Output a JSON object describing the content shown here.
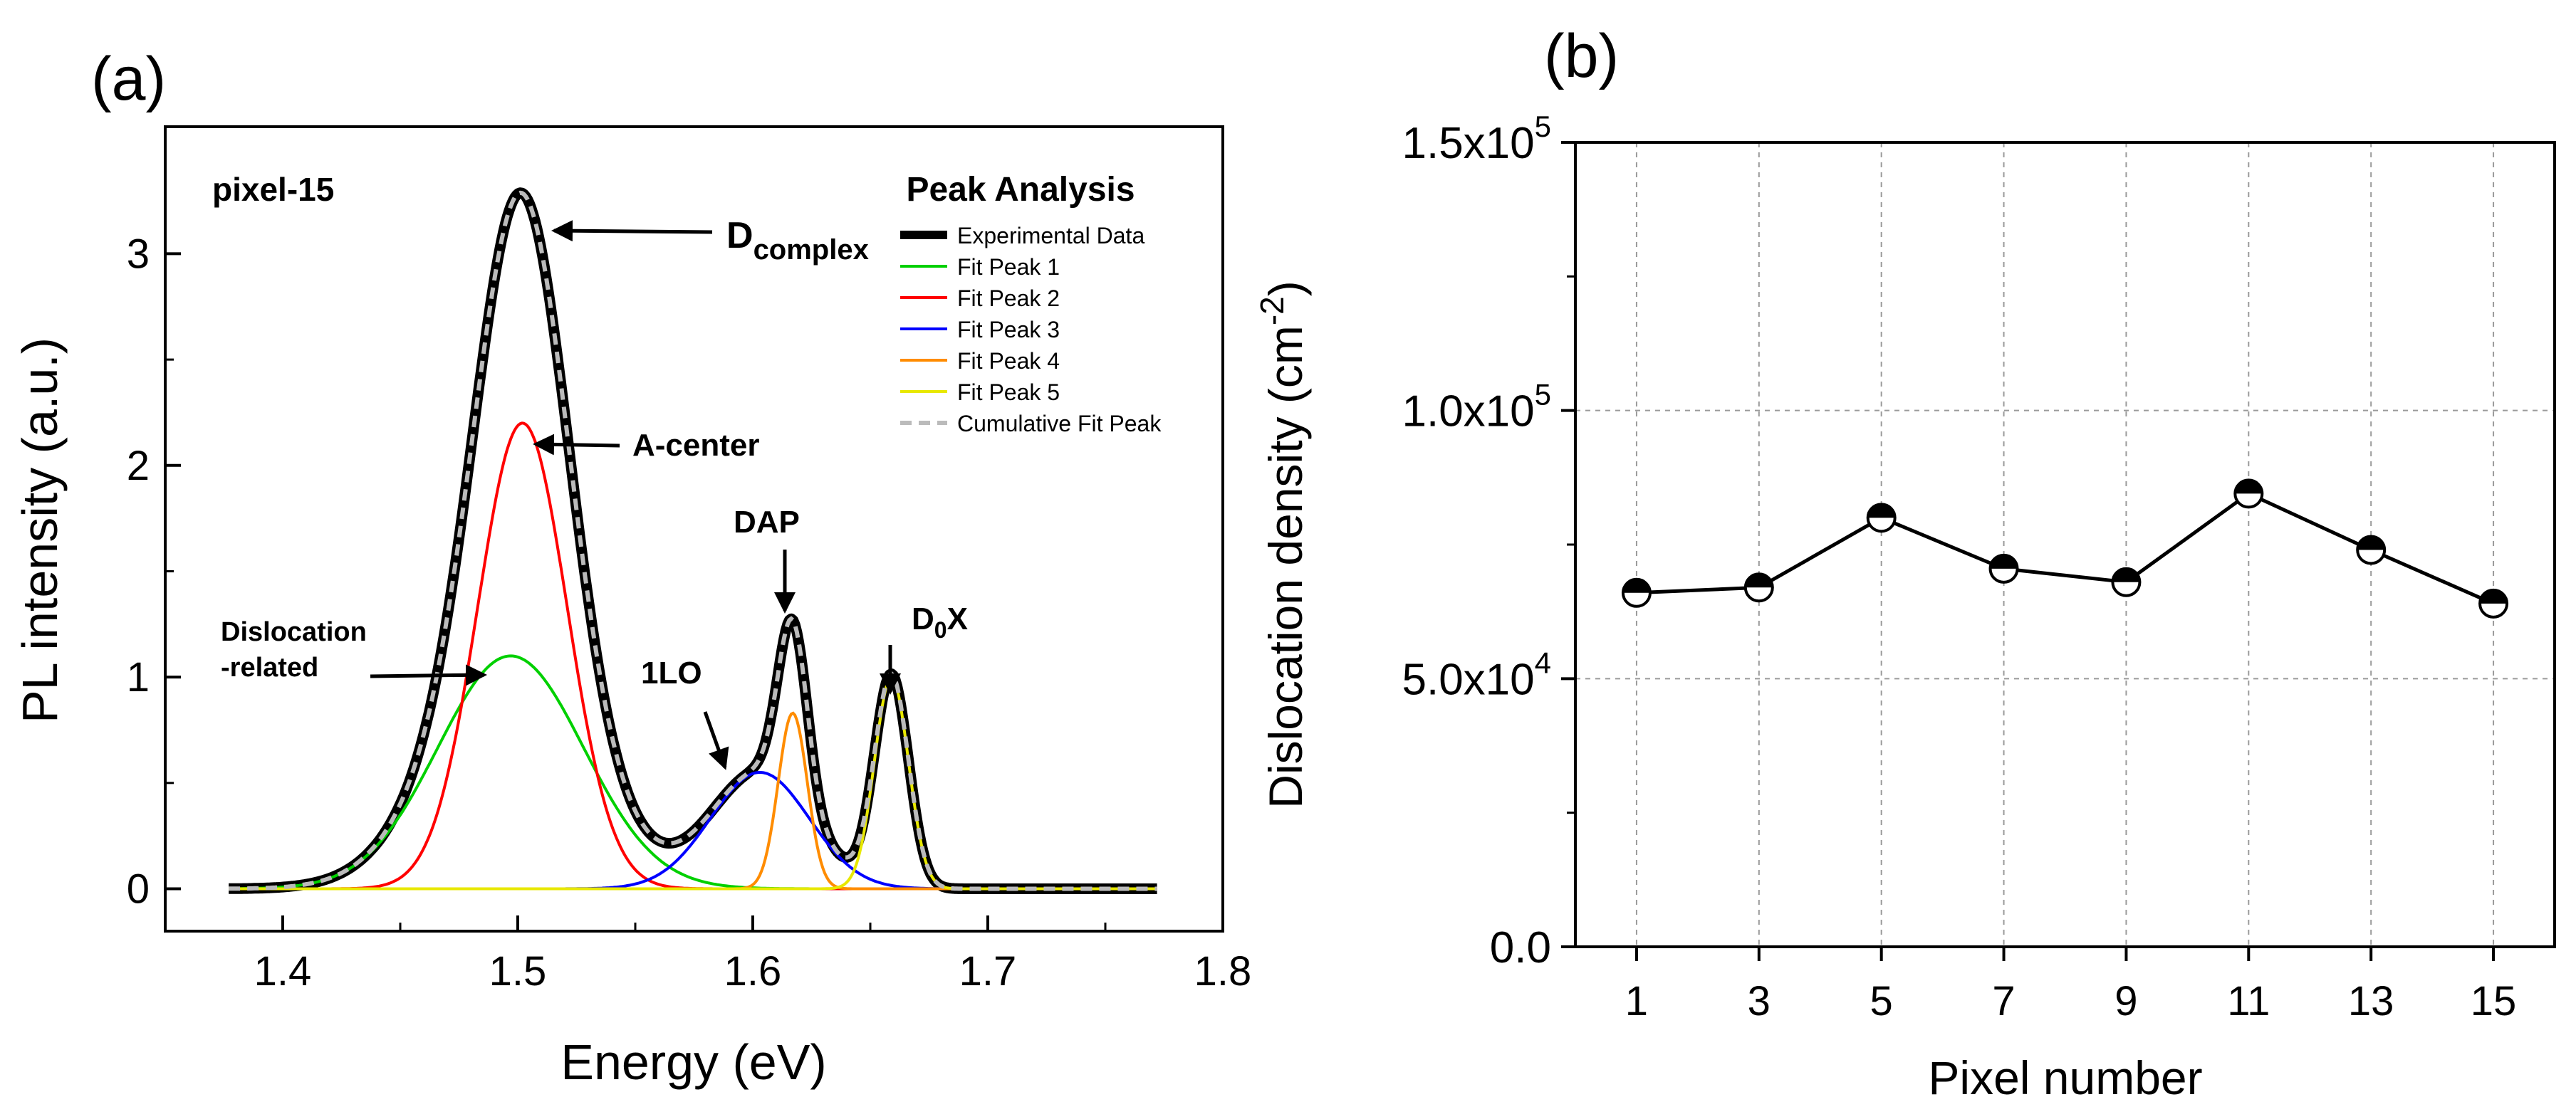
{
  "chart_data": [
    {
      "type": "line",
      "panel_label": "(a)",
      "sample_label": "pixel-15",
      "xlabel": "Energy (eV)",
      "ylabel": "PL intensity (a.u.)",
      "xlim": [
        1.35,
        1.8
      ],
      "ylim": [
        -0.2,
        3.6
      ],
      "x_ticks": [
        1.4,
        1.5,
        1.6,
        1.7,
        1.8
      ],
      "x_tick_labels": [
        "1.4",
        "1.5",
        "1.6",
        "1.7",
        "1.8"
      ],
      "y_ticks": [
        0,
        1,
        2,
        3
      ],
      "y_tick_labels": [
        "0",
        "1",
        "2",
        "3"
      ],
      "x_range_data": [
        1.377,
        1.772
      ],
      "peaks": [
        {
          "name": "Fit Peak 1",
          "center": 1.497,
          "amplitude": 1.1,
          "sigma": 0.031,
          "color": "#00d000"
        },
        {
          "name": "Fit Peak 2",
          "center": 1.502,
          "amplitude": 2.2,
          "sigma": 0.019,
          "color": "#ff0000"
        },
        {
          "name": "Fit Peak 3",
          "center": 1.603,
          "amplitude": 0.55,
          "sigma": 0.021,
          "color": "#0000ff"
        },
        {
          "name": "Fit Peak 4",
          "center": 1.617,
          "amplitude": 0.83,
          "sigma": 0.0062,
          "color": "#ff8c00"
        },
        {
          "name": "Fit Peak 5",
          "center": 1.659,
          "amplitude": 1.0,
          "sigma": 0.0072,
          "color": "#e8e800"
        }
      ],
      "series": [
        {
          "name": "Experimental Data",
          "color": "#000000"
        },
        {
          "name": "Cumulative Fit Peak",
          "color": "#bbbbbb"
        }
      ],
      "legend": {
        "title": "Peak Analysis",
        "position": "top-right",
        "entries": [
          {
            "label": "Experimental Data",
            "color": "#000000",
            "style": "thick"
          },
          {
            "label": "Fit Peak 1",
            "color": "#00d000",
            "style": "solid"
          },
          {
            "label": "Fit Peak 2",
            "color": "#ff0000",
            "style": "solid"
          },
          {
            "label": "Fit Peak 3",
            "color": "#0000ff",
            "style": "solid"
          },
          {
            "label": "Fit Peak 4",
            "color": "#ff8c00",
            "style": "solid"
          },
          {
            "label": "Fit Peak 5",
            "color": "#e8e800",
            "style": "solid"
          },
          {
            "label": "Cumulative Fit Peak",
            "color": "#bbbbbb",
            "style": "dashed"
          }
        ]
      },
      "annotations": [
        {
          "text": "D",
          "subscript": "complex"
        },
        {
          "text": "A-center"
        },
        {
          "text_lines": [
            "Dislocation",
            "-related"
          ]
        },
        {
          "text": "1LO"
        },
        {
          "text": "DAP"
        },
        {
          "text": "D",
          "subscript": "0",
          "suffix": "X"
        }
      ]
    },
    {
      "type": "line",
      "panel_label": "(b)",
      "xlabel": "Pixel number",
      "ylabel": "Dislocation density (cm",
      "ylabel_superscript": "-2",
      "ylabel_suffix": ")",
      "xlim": [
        0,
        16
      ],
      "ylim": [
        0,
        150000
      ],
      "categories": [
        1,
        3,
        5,
        7,
        9,
        11,
        13,
        15
      ],
      "x_tick_labels": [
        "1",
        "3",
        "5",
        "7",
        "9",
        "11",
        "13",
        "15"
      ],
      "values": [
        66000,
        67000,
        80000,
        70500,
        68000,
        84500,
        74000,
        64000
      ],
      "grid": true,
      "y_ticks": [
        {
          "value": 0,
          "label": "0.0"
        },
        {
          "value": 50000,
          "mantissa": "5.0x10",
          "exponent": "4"
        },
        {
          "value": 100000,
          "mantissa": "1.0x10",
          "exponent": "5"
        },
        {
          "value": 150000,
          "mantissa": "1.5x10",
          "exponent": "5"
        }
      ]
    }
  ]
}
